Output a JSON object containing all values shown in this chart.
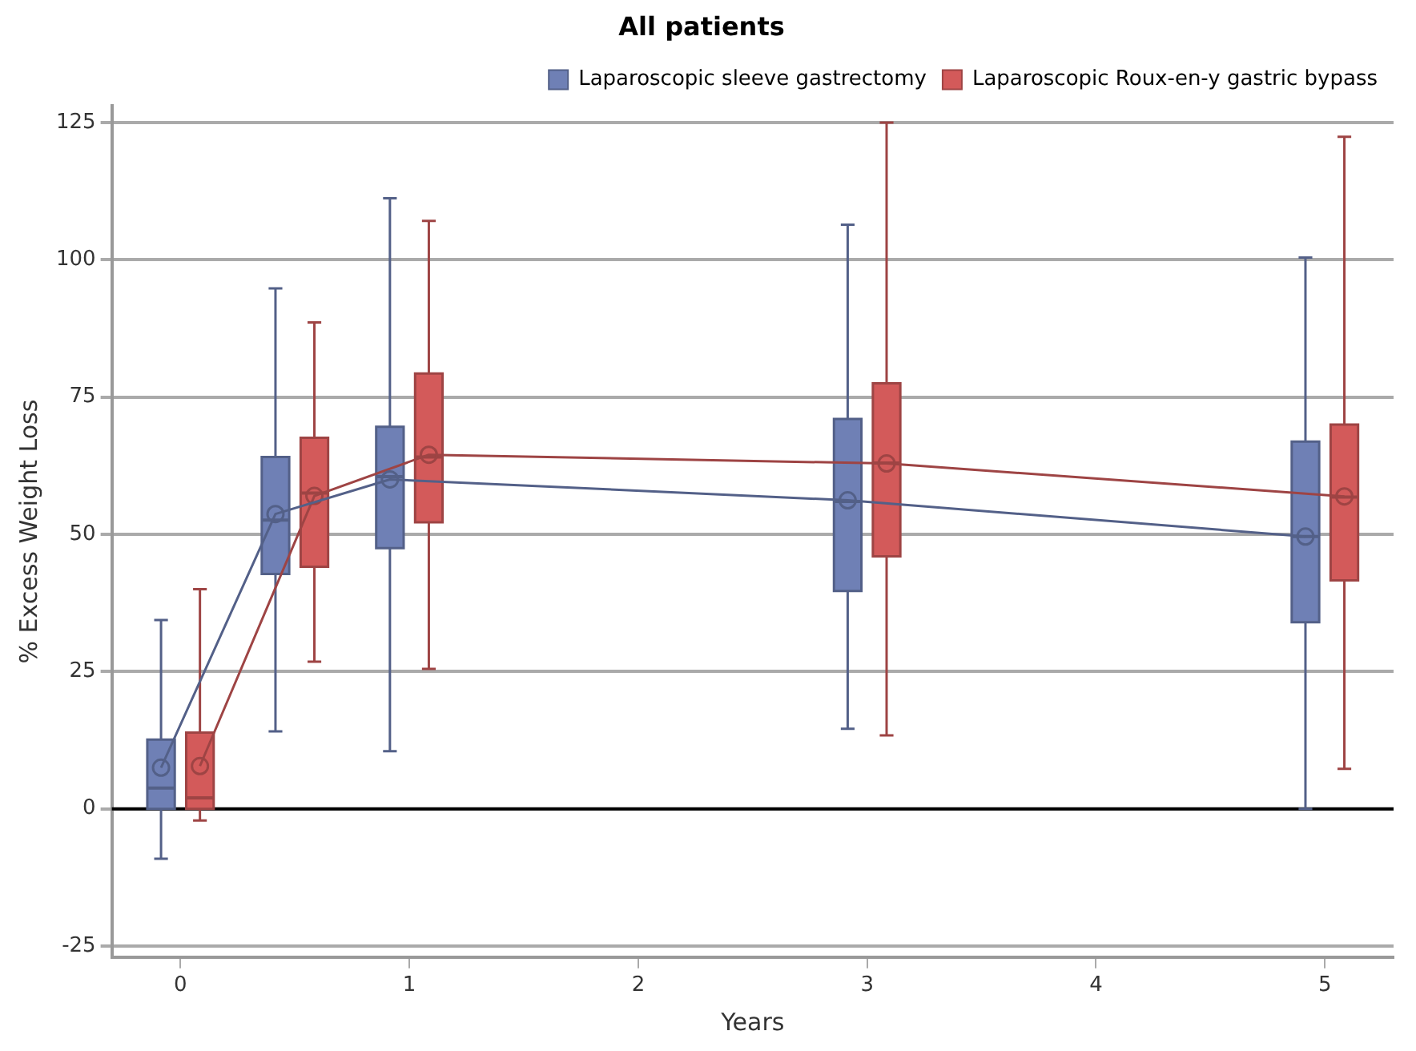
{
  "chart_data": {
    "type": "box",
    "title": "All patients",
    "xlabel": "Years",
    "ylabel": "% Excess Weight Loss",
    "xlim": [
      -0.3,
      5.3
    ],
    "xticks": [
      0,
      1,
      2,
      3,
      4,
      5
    ],
    "ylim": [
      -27,
      128
    ],
    "yticks": [
      -25,
      0,
      25,
      50,
      75,
      100,
      125
    ],
    "grid": "y",
    "legend": "top right",
    "marker": "circle",
    "ref_lines": [
      {
        "axis": "y",
        "value": 0,
        "color": "#000000"
      }
    ],
    "series": [
      {
        "name": "Laparoscopic sleeve gastrectomy",
        "color": "#6f80b5",
        "x": [
          -0.085,
          0.415,
          0.915,
          2.915,
          4.915
        ],
        "boxes": [
          {
            "low": -9.1,
            "q1": 0,
            "median": 3.8,
            "q3": 12.6,
            "high": 34.4
          },
          {
            "low": 14.1,
            "q1": 42.8,
            "median": 52.6,
            "q3": 64.1,
            "high": 94.8
          },
          {
            "low": 10.5,
            "q1": 47.5,
            "median": 60.5,
            "q3": 69.6,
            "high": 111.2
          },
          {
            "low": 14.6,
            "q1": 39.7,
            "median": 56,
            "q3": 71,
            "high": 106.4
          },
          {
            "low": 0,
            "q1": 34,
            "median": 49.6,
            "q3": 66.9,
            "high": 100.4
          }
        ]
      },
      {
        "name": "Laparoscopic Roux-en-y gastric bypass",
        "color": "#d35a5a",
        "x": [
          0.085,
          0.585,
          1.085,
          3.085,
          5.085
        ],
        "boxes": [
          {
            "low": -2.1,
            "q1": 0,
            "median": 2,
            "q3": 13.9,
            "high": 40
          },
          {
            "low": 26.8,
            "q1": 44.1,
            "median": 57.5,
            "q3": 67.6,
            "high": 88.6
          },
          {
            "low": 25.5,
            "q1": 52.2,
            "median": 64.1,
            "q3": 79.3,
            "high": 107.1
          },
          {
            "low": 13.4,
            "q1": 46,
            "median": 63,
            "q3": 77.5,
            "high": 125
          },
          {
            "low": 7.3,
            "q1": 41.6,
            "median": 56.8,
            "q3": 70,
            "high": 122.4
          }
        ]
      },
      {
        "type": "line",
        "color": "#536088",
        "x": [
          -0.085,
          0.415,
          0.915,
          2.915,
          4.915
        ],
        "values": [
          7.5,
          53.7,
          60,
          56.2,
          49.6
        ]
      },
      {
        "type": "line",
        "color": "#9e4444",
        "x": [
          0.085,
          0.585,
          1.085,
          3.085,
          5.085
        ],
        "values": [
          7.8,
          57,
          64.5,
          62.9,
          56.9
        ]
      }
    ]
  }
}
